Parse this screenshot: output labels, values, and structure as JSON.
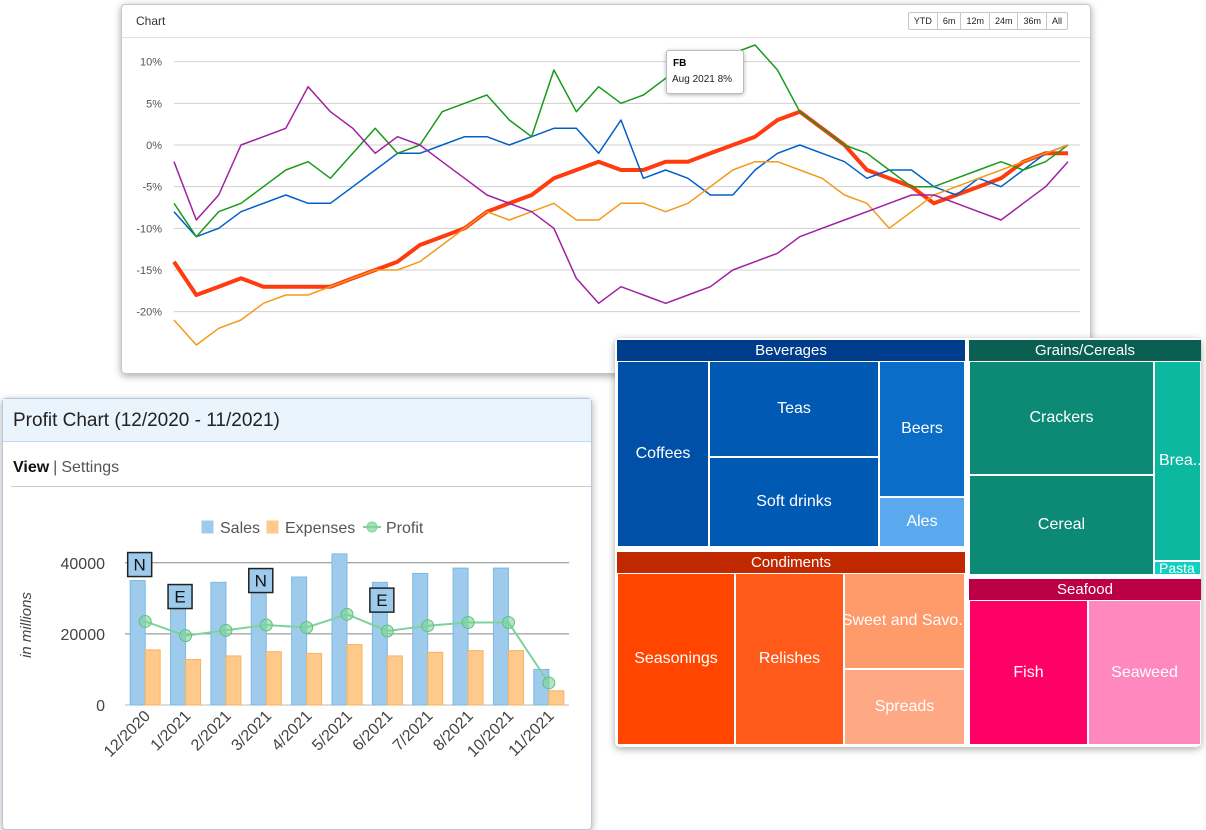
{
  "line_chart": {
    "title": "Chart",
    "range_buttons": [
      "YTD",
      "6m",
      "12m",
      "24m",
      "36m",
      "All"
    ],
    "tooltip": {
      "symbol": "FB",
      "text": "Aug 2021 8%"
    }
  },
  "profit_chart": {
    "title": "Profit Chart (12/2020 - 11/2021)",
    "tabs": {
      "view": "View",
      "separator": "|",
      "settings": "Settings"
    }
  },
  "treemap": {
    "groups": [
      {
        "name": "Beverages",
        "color": "#003c8c",
        "items": [
          {
            "label": "Coffees",
            "color": "#0050a8"
          },
          {
            "label": "Teas",
            "color": "#0059b3"
          },
          {
            "label": "Soft drinks",
            "color": "#0059b3"
          },
          {
            "label": "Beers",
            "color": "#0a6dc8"
          },
          {
            "label": "Ales",
            "color": "#5aa8ee"
          }
        ]
      },
      {
        "name": "Grains/Cereals",
        "color": "#0a5e52",
        "items": [
          {
            "label": "Crackers",
            "color": "#0d8a76"
          },
          {
            "label": "Cereal",
            "color": "#0d8a76"
          },
          {
            "label": "Brea..",
            "color": "#0db8a0"
          },
          {
            "label": "Pasta",
            "color": "#10d0c0"
          }
        ]
      },
      {
        "name": "Condiments",
        "color": "#c02800",
        "items": [
          {
            "label": "Seasonings",
            "color": "#ff4500"
          },
          {
            "label": "Relishes",
            "color": "#ff5a1a"
          },
          {
            "label": "Sweet and Savo..",
            "color": "#ff9a6a"
          },
          {
            "label": "Spreads",
            "color": "#ffa884"
          }
        ]
      },
      {
        "name": "Seafood",
        "color": "#bb0045",
        "items": [
          {
            "label": "Fish",
            "color": "#ff0066"
          },
          {
            "label": "Seaweed",
            "color": "#ff88be"
          }
        ]
      }
    ]
  },
  "chart_data": [
    {
      "type": "line",
      "title": "Chart",
      "ylabel": "",
      "ylim": [
        -24,
        12
      ],
      "yticks": [
        "10%",
        "5%",
        "0%",
        "-5%",
        "-10%",
        "-15%",
        "-20%"
      ],
      "ytick_values": [
        10,
        5,
        0,
        -5,
        -10,
        -15,
        -20
      ],
      "x": [
        0,
        1,
        2,
        3,
        4,
        5,
        6,
        7,
        8,
        9,
        10,
        11,
        12,
        13,
        14,
        15,
        16,
        17,
        18,
        19,
        20,
        21,
        22,
        23,
        24,
        25,
        26,
        27,
        28,
        29,
        30,
        31,
        32,
        33,
        34,
        35,
        36,
        37,
        38,
        39,
        40
      ],
      "series": [
        {
          "color": "#ff3b10",
          "width": 4,
          "values": [
            -14,
            -18,
            -17,
            -16,
            -17,
            -17,
            -17,
            -17,
            -16,
            -15,
            -14,
            -12,
            -11,
            -10,
            -8,
            -7,
            -6,
            -4,
            -3,
            -2,
            -3,
            -3,
            -2,
            -2,
            -1,
            0,
            1,
            3,
            4,
            2,
            0,
            -3,
            -4,
            -5,
            -7,
            -6,
            -5,
            -4,
            -2,
            -1,
            -1
          ]
        },
        {
          "color": "#0060c8",
          "width": 1.5,
          "values": [
            -8,
            -11,
            -10,
            -8,
            -7,
            -6,
            -7,
            -7,
            -5,
            -3,
            -1,
            -1,
            0,
            1,
            1,
            0,
            1,
            2,
            2,
            -1,
            3,
            -4,
            -3,
            -4,
            -6,
            -6,
            -3,
            -1,
            0,
            -1,
            -2,
            -4,
            -3,
            -3,
            -5,
            -6,
            -4,
            -5,
            -3,
            -1,
            0
          ]
        },
        {
          "color": "#1a9a1a",
          "width": 1.5,
          "values": [
            -7,
            -11,
            -8,
            -7,
            -5,
            -3,
            -2,
            -4,
            -1,
            2,
            -1,
            0,
            4,
            5,
            6,
            3,
            1,
            9,
            4,
            7,
            5,
            6,
            8,
            9,
            10,
            11,
            12,
            9,
            4,
            2,
            0,
            -1,
            -3,
            -5,
            -5,
            -4,
            -3,
            -2,
            -3,
            -2,
            0
          ]
        },
        {
          "color": "#f39a1a",
          "width": 1.5,
          "values": [
            -21,
            -24,
            -22,
            -21,
            -19,
            -18,
            -18,
            -17,
            -16,
            -15,
            -15,
            -14,
            -12,
            -10,
            -8,
            -9,
            -8,
            -7,
            -9,
            -9,
            -7,
            -7,
            -8,
            -7,
            -5,
            -3,
            -2,
            -2,
            -3,
            -4,
            -6,
            -7,
            -10,
            -8,
            -6,
            -5,
            -4,
            -3,
            -2,
            -1,
            0
          ]
        },
        {
          "color": "#a020a0",
          "width": 1.5,
          "values": [
            -2,
            -9,
            -6,
            0,
            1,
            2,
            7,
            4,
            2,
            -1,
            1,
            0,
            -2,
            -4,
            -6,
            -7,
            -8,
            -10,
            -16,
            -19,
            -17,
            -18,
            -19,
            -18,
            -17,
            -15,
            -14,
            -13,
            -11,
            -10,
            -9,
            -8,
            -7,
            -6,
            -6,
            -7,
            -8,
            -9,
            -7,
            -5,
            -2
          ]
        }
      ]
    },
    {
      "type": "bar",
      "title": "",
      "ylabel": "in millions",
      "ylim": [
        0,
        45000
      ],
      "yticks": [
        0,
        20000,
        40000
      ],
      "categories": [
        "12/2020",
        "1/2021",
        "2/2021",
        "3/2021",
        "4/2021",
        "5/2021",
        "6/2021",
        "7/2021",
        "8/2021",
        "10/2021",
        "11/2021"
      ],
      "series": [
        {
          "name": "Sales",
          "color": "#9ecbec",
          "values": [
            35000,
            29000,
            34500,
            37500,
            36000,
            42500,
            34500,
            37000,
            38500,
            38500,
            10000
          ]
        },
        {
          "name": "Expenses",
          "color": "#fec98a",
          "values": [
            15500,
            12800,
            13800,
            15000,
            14500,
            17000,
            13800,
            14800,
            15300,
            15300,
            4000
          ]
        },
        {
          "name": "Profit",
          "color": "#7ed39a",
          "type": "line",
          "values": [
            23500,
            19500,
            21000,
            22500,
            21800,
            25500,
            20800,
            22300,
            23200,
            23200,
            6200
          ]
        }
      ],
      "annotations": [
        {
          "text": "N",
          "category": "12/2020",
          "y": 39500
        },
        {
          "text": "E",
          "category": "1/2021",
          "y": 30500
        },
        {
          "text": "N",
          "category": "3/2021",
          "y": 35000
        },
        {
          "text": "E",
          "category": "6/2021",
          "y": 29500
        }
      ]
    }
  ]
}
